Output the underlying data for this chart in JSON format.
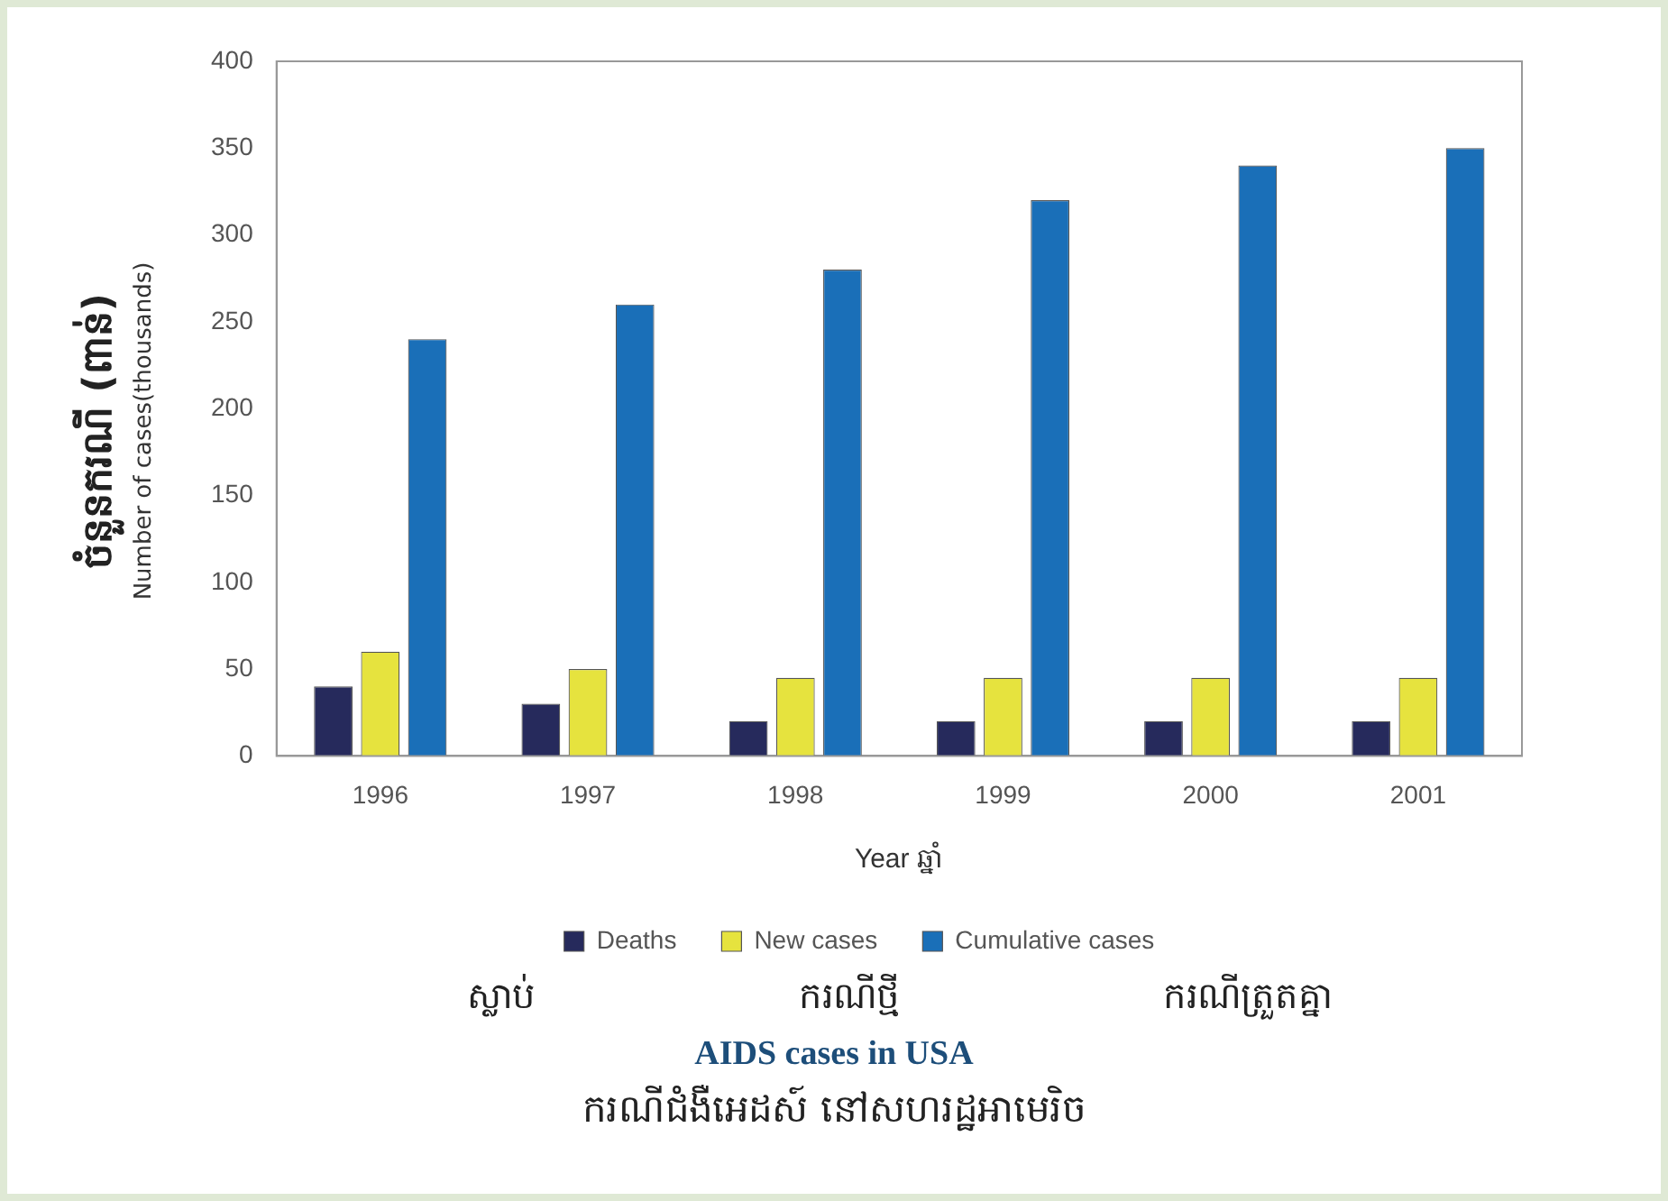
{
  "chart_data": {
    "type": "bar",
    "title": "AIDS cases in USA",
    "subtitle": "ករណីជំងឺអេដស៍ នៅសហរដ្ឋអាមេរិច",
    "xlabel": "Year ឆ្នាំ",
    "ylabel": "ចំនួនករណី (ពាន់)",
    "y2label": "Number of cases(thousands)",
    "categories": [
      "1996",
      "1997",
      "1998",
      "1999",
      "2000",
      "2001"
    ],
    "series": [
      {
        "name": "Deaths",
        "color": "#262a5c",
        "values": [
          40,
          30,
          20,
          20,
          20,
          20
        ]
      },
      {
        "name": "New cases",
        "color": "#e6e33e",
        "values": [
          60,
          50,
          45,
          45,
          45,
          45
        ]
      },
      {
        "name": "Cumulative cases",
        "color": "#1a6fb8",
        "values": [
          240,
          260,
          280,
          320,
          340,
          350
        ]
      }
    ],
    "annotations": [
      "ស្លាប់",
      "ករណីថ្មី",
      "ករណីត្រួតគ្នា"
    ],
    "ylim": [
      0,
      400
    ],
    "yticks": [
      0,
      50,
      100,
      150,
      200,
      250,
      300,
      350,
      400
    ],
    "grid": false,
    "legend": "bottom"
  }
}
